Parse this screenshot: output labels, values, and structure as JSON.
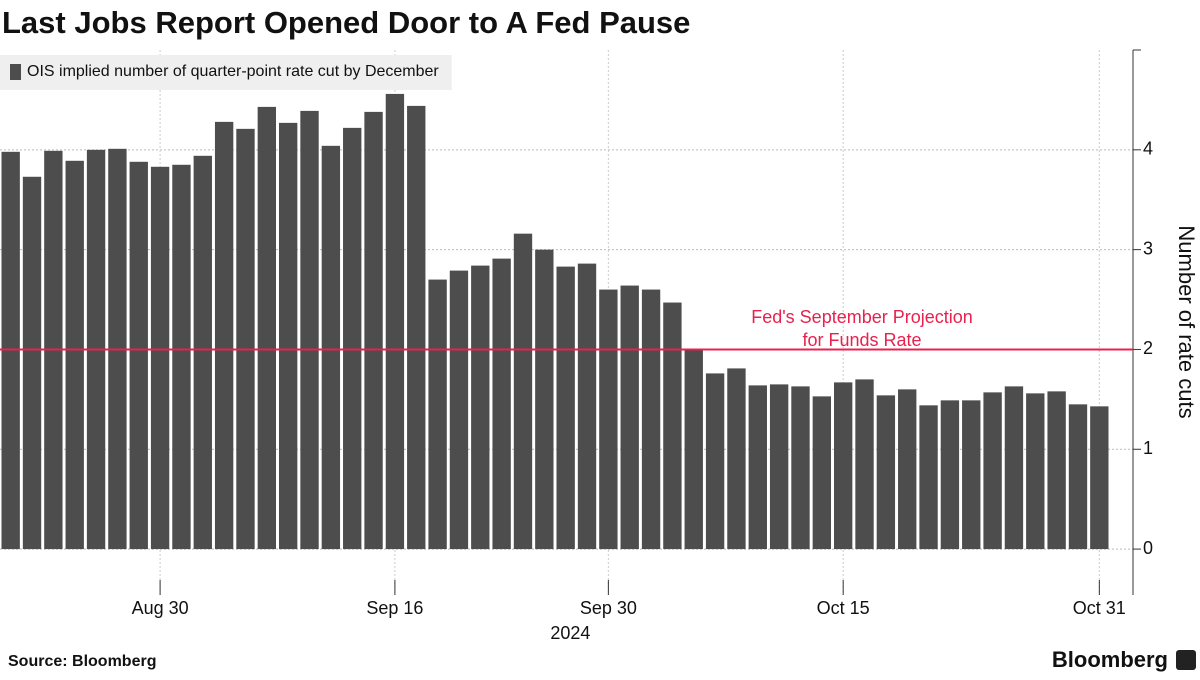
{
  "chart_data": {
    "type": "bar",
    "title": "Last Jobs Report Opened Door to A Fed Pause",
    "series": [
      {
        "name": "OIS implied number of quarter-point rate cut by December",
        "color": "#4d4d4d",
        "values": [
          3.98,
          3.73,
          3.99,
          3.89,
          4.0,
          4.01,
          3.88,
          3.83,
          3.85,
          3.94,
          4.28,
          4.21,
          4.43,
          4.27,
          4.39,
          4.04,
          4.22,
          4.38,
          4.56,
          4.44,
          2.7,
          2.79,
          2.84,
          2.91,
          3.16,
          3.0,
          2.83,
          2.86,
          2.6,
          2.64,
          2.6,
          2.47,
          2.0,
          1.76,
          1.81,
          1.64,
          1.65,
          1.63,
          1.53,
          1.67,
          1.7,
          1.54,
          1.6,
          1.44,
          1.49,
          1.49,
          1.57,
          1.63,
          1.56,
          1.58,
          1.45,
          1.43
        ]
      }
    ],
    "categories": [
      null,
      null,
      null,
      null,
      null,
      null,
      null,
      "Aug 30",
      null,
      null,
      null,
      null,
      null,
      null,
      null,
      null,
      null,
      null,
      "Sep 16",
      null,
      null,
      null,
      null,
      null,
      null,
      null,
      null,
      null,
      "Sep 30",
      null,
      null,
      null,
      null,
      null,
      null,
      null,
      null,
      null,
      null,
      "Oct 15",
      null,
      null,
      null,
      null,
      null,
      null,
      null,
      null,
      null,
      null,
      null,
      "Oct 31"
    ],
    "x_axis_year": "2024",
    "ylabel": "Number of rate cuts",
    "ylim": [
      -0.46,
      5
    ],
    "yticks": [
      0,
      1,
      2,
      3,
      4
    ],
    "grid": true,
    "reference_line": {
      "value": 2,
      "label": [
        "Fed's September Projection",
        "for Funds Rate"
      ],
      "color": "#e8214f"
    },
    "source": "Source: Bloomberg",
    "brand": "Bloomberg"
  }
}
